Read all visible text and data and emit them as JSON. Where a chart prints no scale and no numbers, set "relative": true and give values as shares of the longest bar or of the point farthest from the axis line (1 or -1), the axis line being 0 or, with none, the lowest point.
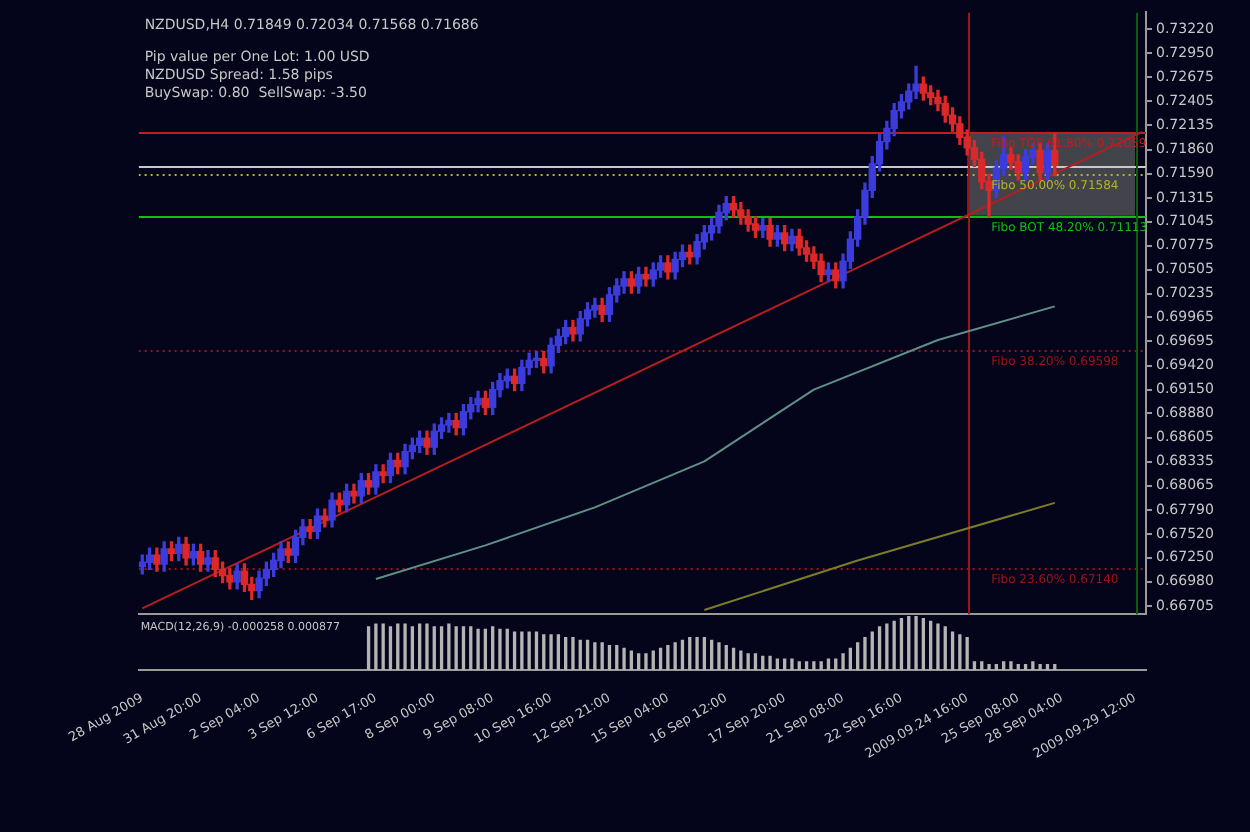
{
  "chart_data": [
    {
      "type": "candlestick",
      "title": "NZDUSD,H4 0.71849 0.72034 0.71568 0.71686",
      "annotations": [
        "Pip value per One Lot: 1.00 USD",
        "NZDUSD Spread: 1.58 pips",
        "BuySwap: 0.80  SellSwap: -3.50"
      ],
      "categories": [
        "28 Aug 2009",
        null,
        null,
        null,
        null,
        null,
        null,
        null,
        "31 Aug 20:00",
        null,
        null,
        null,
        null,
        null,
        null,
        null,
        "2 Sep 04:00",
        null,
        null,
        null,
        null,
        null,
        null,
        null,
        "3 Sep 12:00",
        null,
        null,
        null,
        null,
        null,
        null,
        null,
        "6 Sep 17:00",
        null,
        null,
        null,
        null,
        null,
        null,
        null,
        "8 Sep 00:00",
        null,
        null,
        null,
        null,
        null,
        null,
        null,
        "9 Sep 08:00",
        null,
        null,
        null,
        null,
        null,
        null,
        null,
        "10 Sep 16:00",
        null,
        null,
        null,
        null,
        null,
        null,
        null,
        "12 Sep 21:00",
        null,
        null,
        null,
        null,
        null,
        null,
        null,
        "15 Sep 04:00",
        null,
        null,
        null,
        null,
        null,
        null,
        null,
        "16 Sep 12:00",
        null,
        null,
        null,
        null,
        null,
        null,
        null,
        "17 Sep 20:00",
        null,
        null,
        null,
        null,
        null,
        null,
        null,
        "21 Sep 08:00",
        null,
        null,
        null,
        null,
        null,
        null,
        null,
        "22 Sep 16:00",
        null,
        null,
        null,
        null,
        null,
        null,
        null,
        null,
        "2009.09.24 16:00",
        null,
        null,
        null,
        null,
        null,
        null,
        "25 Sep 08:00",
        null,
        null,
        null,
        null,
        null,
        "28 Sep 04:00",
        null,
        null,
        null,
        null,
        null,
        null,
        null,
        null,
        null,
        "2009.09.29 12:00",
        null
      ],
      "ohlc": [
        [
          0.6715,
          0.6728,
          0.6707,
          0.672
        ],
        [
          0.672,
          0.6736,
          0.6712,
          0.6728
        ],
        [
          0.6728,
          0.6736,
          0.671,
          0.6718
        ],
        [
          0.6718,
          0.6743,
          0.671,
          0.6735
        ],
        [
          0.6735,
          0.6743,
          0.6722,
          0.673
        ],
        [
          0.673,
          0.6748,
          0.6722,
          0.674
        ],
        [
          0.674,
          0.6748,
          0.6717,
          0.6725
        ],
        [
          0.6725,
          0.674,
          0.6717,
          0.6732
        ],
        [
          0.6732,
          0.674,
          0.671,
          0.6718
        ],
        [
          0.6718,
          0.6733,
          0.671,
          0.6725
        ],
        [
          0.6725,
          0.6733,
          0.6704,
          0.6712
        ],
        [
          0.6712,
          0.672,
          0.6697,
          0.6705
        ],
        [
          0.6705,
          0.6713,
          0.669,
          0.6698
        ],
        [
          0.6698,
          0.6718,
          0.669,
          0.671
        ],
        [
          0.671,
          0.6718,
          0.6687,
          0.6695
        ],
        [
          0.6695,
          0.6703,
          0.6678,
          0.6688
        ],
        [
          0.6688,
          0.671,
          0.668,
          0.6702
        ],
        [
          0.6702,
          0.672,
          0.6694,
          0.6712
        ],
        [
          0.6712,
          0.673,
          0.6704,
          0.6722
        ],
        [
          0.6722,
          0.6743,
          0.6714,
          0.6735
        ],
        [
          0.6735,
          0.6743,
          0.672,
          0.6728
        ],
        [
          0.6728,
          0.6756,
          0.672,
          0.6748
        ],
        [
          0.6748,
          0.6768,
          0.674,
          0.676
        ],
        [
          0.676,
          0.6768,
          0.6747,
          0.6755
        ],
        [
          0.6755,
          0.678,
          0.6747,
          0.6772
        ],
        [
          0.6772,
          0.678,
          0.676,
          0.6768
        ],
        [
          0.6768,
          0.6798,
          0.676,
          0.679
        ],
        [
          0.679,
          0.6798,
          0.6777,
          0.6785
        ],
        [
          0.6785,
          0.6808,
          0.6777,
          0.68
        ],
        [
          0.68,
          0.6808,
          0.6787,
          0.6795
        ],
        [
          0.6795,
          0.682,
          0.6787,
          0.6812
        ],
        [
          0.6812,
          0.682,
          0.6797,
          0.6805
        ],
        [
          0.6805,
          0.683,
          0.6797,
          0.6822
        ],
        [
          0.6822,
          0.683,
          0.681,
          0.6818
        ],
        [
          0.6818,
          0.6843,
          0.681,
          0.6835
        ],
        [
          0.6835,
          0.6843,
          0.682,
          0.6828
        ],
        [
          0.6828,
          0.6853,
          0.682,
          0.6845
        ],
        [
          0.6845,
          0.686,
          0.6837,
          0.6852
        ],
        [
          0.6852,
          0.6868,
          0.6844,
          0.686
        ],
        [
          0.686,
          0.6868,
          0.6842,
          0.685
        ],
        [
          0.685,
          0.6876,
          0.6842,
          0.6868
        ],
        [
          0.6868,
          0.6883,
          0.686,
          0.6875
        ],
        [
          0.6875,
          0.6888,
          0.6867,
          0.688
        ],
        [
          0.688,
          0.6888,
          0.6864,
          0.6872
        ],
        [
          0.6872,
          0.6898,
          0.6864,
          0.689
        ],
        [
          0.689,
          0.6906,
          0.6882,
          0.6898
        ],
        [
          0.6898,
          0.6913,
          0.689,
          0.6905
        ],
        [
          0.6905,
          0.6913,
          0.6887,
          0.6895
        ],
        [
          0.6895,
          0.6923,
          0.6887,
          0.6915
        ],
        [
          0.6915,
          0.6933,
          0.6907,
          0.6925
        ],
        [
          0.6925,
          0.6938,
          0.6917,
          0.693
        ],
        [
          0.693,
          0.6938,
          0.6914,
          0.6922
        ],
        [
          0.6922,
          0.6948,
          0.6914,
          0.694
        ],
        [
          0.694,
          0.6956,
          0.6932,
          0.6948
        ],
        [
          0.6948,
          0.6958,
          0.694,
          0.695
        ],
        [
          0.695,
          0.6958,
          0.6934,
          0.6942
        ],
        [
          0.6942,
          0.6973,
          0.6934,
          0.6965
        ],
        [
          0.6965,
          0.6983,
          0.6957,
          0.6975
        ],
        [
          0.6975,
          0.6993,
          0.6967,
          0.6985
        ],
        [
          0.6985,
          0.6993,
          0.697,
          0.6978
        ],
        [
          0.6978,
          0.7003,
          0.697,
          0.6995
        ],
        [
          0.6995,
          0.7013,
          0.6987,
          0.7005
        ],
        [
          0.7005,
          0.7018,
          0.6997,
          0.701
        ],
        [
          0.701,
          0.7018,
          0.6992,
          0.7
        ],
        [
          0.7,
          0.703,
          0.6992,
          0.7022
        ],
        [
          0.7022,
          0.704,
          0.7014,
          0.7032
        ],
        [
          0.7032,
          0.7048,
          0.7024,
          0.704
        ],
        [
          0.704,
          0.7048,
          0.7024,
          0.7032
        ],
        [
          0.7032,
          0.7053,
          0.7024,
          0.7045
        ],
        [
          0.7045,
          0.7053,
          0.7032,
          0.704
        ],
        [
          0.704,
          0.7058,
          0.7032,
          0.705
        ],
        [
          0.705,
          0.7066,
          0.7042,
          0.7058
        ],
        [
          0.7058,
          0.7066,
          0.704,
          0.7048
        ],
        [
          0.7048,
          0.707,
          0.704,
          0.7062
        ],
        [
          0.7062,
          0.7078,
          0.7054,
          0.707
        ],
        [
          0.707,
          0.7078,
          0.7057,
          0.7065
        ],
        [
          0.7065,
          0.709,
          0.7057,
          0.7082
        ],
        [
          0.7082,
          0.71,
          0.7074,
          0.7092
        ],
        [
          0.7092,
          0.7108,
          0.7084,
          0.71
        ],
        [
          0.71,
          0.7123,
          0.7092,
          0.7115
        ],
        [
          0.7115,
          0.7133,
          0.7107,
          0.7125
        ],
        [
          0.7125,
          0.7133,
          0.711,
          0.7118
        ],
        [
          0.7118,
          0.7126,
          0.7102,
          0.711
        ],
        [
          0.711,
          0.7118,
          0.7094,
          0.7102
        ],
        [
          0.7102,
          0.711,
          0.7087,
          0.7095
        ],
        [
          0.7095,
          0.7108,
          0.7087,
          0.71
        ],
        [
          0.71,
          0.7108,
          0.7077,
          0.7085
        ],
        [
          0.7085,
          0.71,
          0.7077,
          0.7092
        ],
        [
          0.7092,
          0.71,
          0.7072,
          0.708
        ],
        [
          0.708,
          0.7096,
          0.7072,
          0.7088
        ],
        [
          0.7088,
          0.7096,
          0.7067,
          0.7075
        ],
        [
          0.7075,
          0.7083,
          0.706,
          0.7068
        ],
        [
          0.7068,
          0.7076,
          0.7052,
          0.706
        ],
        [
          0.706,
          0.7068,
          0.7037,
          0.7045
        ],
        [
          0.7045,
          0.7058,
          0.7037,
          0.705
        ],
        [
          0.705,
          0.7058,
          0.703,
          0.7038
        ],
        [
          0.7038,
          0.7068,
          0.703,
          0.706
        ],
        [
          0.706,
          0.7093,
          0.7052,
          0.7085
        ],
        [
          0.7085,
          0.7118,
          0.7077,
          0.711
        ],
        [
          0.711,
          0.7148,
          0.7102,
          0.714
        ],
        [
          0.714,
          0.7178,
          0.7132,
          0.717
        ],
        [
          0.717,
          0.7203,
          0.7162,
          0.7195
        ],
        [
          0.7195,
          0.7218,
          0.7187,
          0.721
        ],
        [
          0.721,
          0.7238,
          0.7202,
          0.723
        ],
        [
          0.723,
          0.7248,
          0.7222,
          0.724
        ],
        [
          0.724,
          0.726,
          0.7232,
          0.7252
        ],
        [
          0.7252,
          0.728,
          0.7244,
          0.726
        ],
        [
          0.726,
          0.7268,
          0.7242,
          0.725
        ],
        [
          0.725,
          0.7258,
          0.7237,
          0.7245
        ],
        [
          0.7245,
          0.7253,
          0.723,
          0.7238
        ],
        [
          0.7238,
          0.7246,
          0.7217,
          0.7225
        ],
        [
          0.7225,
          0.7233,
          0.7207,
          0.7215
        ],
        [
          0.7215,
          0.7223,
          0.7192,
          0.72
        ],
        [
          0.72,
          0.7208,
          0.718,
          0.7188
        ],
        [
          0.7188,
          0.7196,
          0.7167,
          0.7175
        ],
        [
          0.7175,
          0.7183,
          0.7142,
          0.715
        ],
        [
          0.715,
          0.7158,
          0.7111,
          0.714
        ],
        [
          0.714,
          0.7173,
          0.7132,
          0.7165
        ],
        [
          0.7165,
          0.72,
          0.7157,
          0.718
        ],
        [
          0.718,
          0.7188,
          0.7164,
          0.7172
        ],
        [
          0.7172,
          0.718,
          0.7152,
          0.716
        ],
        [
          0.716,
          0.7186,
          0.7152,
          0.7178
        ],
        [
          0.7178,
          0.7193,
          0.717,
          0.7185
        ],
        [
          0.7185,
          0.7193,
          0.7152,
          0.716
        ],
        [
          0.716,
          0.7193,
          0.7152,
          0.71849
        ],
        [
          0.71849,
          0.72034,
          0.71568,
          0.71686
        ],
        null,
        null,
        null,
        null,
        null,
        null,
        null,
        null,
        null,
        null,
        null,
        null
      ],
      "colors": [
        "#3c3cdc",
        "#3c3cdc",
        "#dc2828",
        "#3c3cdc",
        "#dc2828",
        "#3c3cdc",
        "#dc2828",
        "#3c3cdc",
        "#dc2828",
        "#3c3cdc",
        "#dc2828",
        "#dc2828",
        "#dc2828",
        "#3c3cdc",
        "#dc2828",
        "#dc2828",
        "#3c3cdc",
        "#3c3cdc",
        "#3c3cdc",
        "#3c3cdc",
        "#dc2828",
        "#3c3cdc",
        "#3c3cdc",
        "#dc2828",
        "#3c3cdc",
        "#dc2828",
        "#3c3cdc",
        "#dc2828",
        "#3c3cdc",
        "#dc2828",
        "#3c3cdc",
        "#dc2828",
        "#3c3cdc",
        "#dc2828",
        "#3c3cdc",
        "#dc2828",
        "#3c3cdc",
        "#3c3cdc",
        "#3c3cdc",
        "#dc2828",
        "#3c3cdc",
        "#3c3cdc",
        "#3c3cdc",
        "#dc2828",
        "#3c3cdc",
        "#3c3cdc",
        "#3c3cdc",
        "#dc2828",
        "#3c3cdc",
        "#3c3cdc",
        "#3c3cdc",
        "#dc2828",
        "#3c3cdc",
        "#3c3cdc",
        "#3c3cdc",
        "#dc2828",
        "#3c3cdc",
        "#3c3cdc",
        "#3c3cdc",
        "#dc2828",
        "#3c3cdc",
        "#3c3cdc",
        "#3c3cdc",
        "#dc2828",
        "#3c3cdc",
        "#3c3cdc",
        "#3c3cdc",
        "#dc2828",
        "#3c3cdc",
        "#dc2828",
        "#3c3cdc",
        "#3c3cdc",
        "#dc2828",
        "#3c3cdc",
        "#3c3cdc",
        "#dc2828",
        "#3c3cdc",
        "#3c3cdc",
        "#3c3cdc",
        "#3c3cdc",
        "#3c3cdc",
        "#dc2828",
        "#dc2828",
        "#dc2828",
        "#dc2828",
        "#3c3cdc",
        "#dc2828",
        "#3c3cdc",
        "#dc2828",
        "#3c3cdc",
        "#dc2828",
        "#dc2828",
        "#dc2828",
        "#dc2828",
        "#3c3cdc",
        "#dc2828",
        "#3c3cdc",
        "#3c3cdc",
        "#3c3cdc",
        "#3c3cdc",
        "#3c3cdc",
        "#3c3cdc",
        "#3c3cdc",
        "#3c3cdc",
        "#3c3cdc",
        "#3c3cdc",
        "#3c3cdc",
        "#dc2828",
        "#dc2828",
        "#dc2828",
        "#dc2828",
        "#dc2828",
        "#dc2828",
        "#dc2828",
        "#dc2828",
        "#dc2828",
        "#dc2828",
        "#3c3cdc",
        "#3c3cdc",
        "#dc2828",
        "#dc2828",
        "#3c3cdc",
        "#3c3cdc",
        "#dc2828",
        "#3c3cdc",
        "#dc2828",
        null,
        null,
        null,
        null,
        null,
        null,
        null,
        null,
        null,
        null,
        null,
        null
      ],
      "series": [
        {
          "type": "line",
          "color": "#b41e1e",
          "values": [
            0.6668,
            null,
            null,
            null,
            null,
            null,
            null,
            null,
            null,
            null,
            null,
            null,
            null,
            null,
            null,
            null,
            null,
            null,
            null,
            null,
            null,
            null,
            null,
            null,
            null,
            null,
            null,
            null,
            null,
            null,
            null,
            null,
            null,
            null,
            null,
            null,
            null,
            null,
            null,
            null,
            null,
            null,
            null,
            null,
            null,
            null,
            null,
            null,
            null,
            null,
            null,
            null,
            null,
            null,
            null,
            null,
            null,
            null,
            null,
            null,
            null,
            null,
            null,
            null,
            null,
            null,
            null,
            null,
            null,
            null,
            null,
            null,
            null,
            null,
            null,
            null,
            null,
            null,
            null,
            null,
            null,
            null,
            null,
            null,
            null,
            null,
            null,
            null,
            null,
            null,
            null,
            null,
            null,
            null,
            null,
            null,
            null,
            null,
            null,
            null,
            null,
            null,
            null,
            null,
            null,
            null,
            null,
            null,
            null,
            null,
            null,
            null,
            null,
            null,
            null,
            null,
            null,
            null,
            null,
            null,
            null,
            null,
            null,
            null,
            null,
            null,
            null,
            null,
            null,
            null,
            null,
            null,
            null,
            null,
            null,
            null,
            null,
            0.7206
          ]
        },
        {
          "type": "line",
          "color": "#5f8f88",
          "values": [
            null,
            null,
            null,
            null,
            null,
            null,
            null,
            null,
            null,
            null,
            null,
            null,
            null,
            null,
            null,
            null,
            null,
            null,
            null,
            null,
            null,
            null,
            null,
            null,
            null,
            null,
            null,
            null,
            null,
            null,
            null,
            null,
            0.6701,
            null,
            null,
            null,
            null,
            null,
            null,
            null,
            null,
            null,
            null,
            null,
            null,
            null,
            null,
            0.6739,
            null,
            null,
            null,
            null,
            null,
            null,
            null,
            null,
            null,
            null,
            null,
            null,
            null,
            null,
            0.6782,
            null,
            null,
            null,
            null,
            null,
            null,
            null,
            null,
            null,
            null,
            null,
            null,
            null,
            null,
            0.6834,
            null,
            null,
            null,
            null,
            null,
            null,
            null,
            null,
            null,
            null,
            null,
            null,
            null,
            null,
            0.6915,
            null,
            null,
            null,
            null,
            null,
            null,
            null,
            null,
            null,
            null,
            null,
            null,
            null,
            null,
            null,
            null,
            0.6971,
            null,
            null,
            null,
            null,
            null,
            null,
            null,
            null,
            null,
            null,
            null,
            null,
            null,
            null,
            null,
            0.7009,
            null,
            null,
            null,
            null,
            null,
            null,
            null,
            null,
            null,
            null,
            null,
            null
          ]
        },
        {
          "type": "line",
          "color": "#7c7c28",
          "values": [
            null,
            null,
            null,
            null,
            null,
            null,
            null,
            null,
            null,
            null,
            null,
            null,
            null,
            null,
            null,
            null,
            null,
            null,
            null,
            null,
            null,
            null,
            null,
            null,
            null,
            null,
            null,
            null,
            null,
            null,
            null,
            null,
            null,
            null,
            null,
            null,
            null,
            null,
            null,
            null,
            null,
            null,
            null,
            null,
            null,
            null,
            null,
            null,
            null,
            null,
            null,
            null,
            null,
            null,
            null,
            null,
            null,
            null,
            null,
            null,
            null,
            null,
            null,
            null,
            null,
            null,
            null,
            null,
            null,
            null,
            null,
            null,
            null,
            null,
            null,
            null,
            null,
            0.6666,
            null,
            null,
            null,
            null,
            null,
            null,
            null,
            null,
            null,
            null,
            null,
            null,
            null,
            null,
            null,
            null,
            null,
            null,
            null,
            null,
            0.6722,
            null,
            null,
            null,
            null,
            null,
            null,
            null,
            null,
            null,
            null,
            null,
            null,
            null,
            null,
            null,
            null,
            null,
            null,
            null,
            null,
            null,
            null,
            null,
            null,
            null,
            null,
            0.6787,
            null,
            null,
            null,
            null,
            null,
            null,
            null,
            null,
            null,
            null,
            null,
            null
          ]
        }
      ],
      "ylim": [
        0.6661,
        0.7341
      ],
      "yticks": [
        {
          "value": 0.7322,
          "label": "0.73220"
        },
        {
          "value": 0.7295,
          "label": "0.72950"
        },
        0.72675,
        0.72405,
        0.72135,
        {
          "value": 0.7186,
          "label": "0.71860"
        },
        {
          "value": 0.7159,
          "label": "0.71590"
        },
        0.71315,
        0.71045,
        0.70775,
        0.70505,
        0.70235,
        0.69965,
        0.69695,
        {
          "value": 0.6942,
          "label": "0.69420"
        },
        {
          "value": 0.6915,
          "label": "0.69150"
        },
        {
          "value": 0.6888,
          "label": "0.68880"
        },
        0.68605,
        0.68335,
        0.68065,
        {
          "value": 0.6779,
          "label": "0.67790"
        },
        {
          "value": 0.6752,
          "label": "0.67520"
        },
        {
          "value": 0.6725,
          "label": "0.67250"
        },
        {
          "value": 0.6698,
          "label": "0.66980"
        },
        0.66705
      ],
      "ref_lines": [
        {
          "axis": "y",
          "value": 0.72059,
          "label": "Fibo TOP 61.80% 0.72059",
          "color": "#c01e1e"
        },
        {
          "axis": "y",
          "value": 0.71686,
          "color": "#c8c8c8"
        },
        {
          "axis": "y",
          "value": 0.71584,
          "label": "Fibo 50.00% 0.71584",
          "color": "#b4b428",
          "line_style": "dotted"
        },
        {
          "axis": "y",
          "value": 0.71113,
          "label": "Fibo BOT 48.20% 0.71113",
          "color": "#10c010"
        },
        {
          "axis": "y",
          "value": 0.69598,
          "label": "Fibo 38.20% 0.69598",
          "color": "#a01414",
          "line_style": "dotted"
        },
        {
          "axis": "y",
          "value": 0.6714,
          "label": "Fibo 23.60% 0.67140",
          "color": "#a01414",
          "line_style": "dotted"
        },
        {
          "axis": "x",
          "value": "2009.09.24 16:00",
          "color": "#a01414"
        },
        {
          "axis": "x",
          "value": "2009.09.29 12:00",
          "color": "#0c5a0c"
        }
      ],
      "bands": [
        {
          "axis": "y",
          "from": 0.71113,
          "to": 0.72059,
          "color": "#6e6e6e"
        }
      ],
      "tick_labels": true
    },
    {
      "type": "bar",
      "title": "MACD(12,26,9) -0.000258 0.000877",
      "relative": true,
      "color": "#b4b4b4",
      "categories": [
        null,
        null,
        null,
        null,
        null,
        null,
        null,
        null,
        null,
        null,
        null,
        null,
        null,
        null,
        null,
        null,
        null,
        null,
        null,
        null,
        null,
        null,
        null,
        null,
        null,
        null,
        null,
        null,
        null,
        null,
        null,
        null,
        null,
        null,
        null,
        null,
        null,
        null,
        null,
        null,
        null,
        null,
        null,
        null,
        null,
        null,
        null,
        null,
        null,
        null,
        null,
        null,
        null,
        null,
        null,
        null,
        null,
        null,
        null,
        null,
        null,
        null,
        null,
        null,
        null,
        null,
        null,
        null,
        null,
        null,
        null,
        null,
        null,
        null,
        null,
        null,
        null,
        null,
        null,
        null,
        null,
        null,
        null,
        null,
        null,
        null,
        null,
        null,
        null,
        null,
        null,
        null,
        null,
        null,
        null,
        null,
        null,
        null,
        null,
        null,
        null,
        null,
        null,
        null,
        null,
        null,
        null,
        null,
        null,
        null,
        null,
        null,
        null,
        null,
        null,
        null,
        null,
        null,
        null,
        null,
        null,
        null,
        null,
        null,
        null,
        null,
        null,
        null,
        null,
        null,
        null,
        null,
        null,
        null,
        null,
        null,
        null,
        null
      ],
      "values": [
        null,
        null,
        null,
        null,
        null,
        null,
        null,
        null,
        null,
        null,
        null,
        null,
        null,
        null,
        null,
        null,
        null,
        null,
        null,
        null,
        null,
        null,
        null,
        null,
        null,
        null,
        null,
        null,
        null,
        null,
        null,
        0.8,
        0.85,
        0.85,
        0.8,
        0.85,
        0.85,
        0.8,
        0.85,
        0.85,
        0.8,
        0.8,
        0.85,
        0.8,
        0.8,
        0.8,
        0.75,
        0.75,
        0.8,
        0.75,
        0.75,
        0.7,
        0.7,
        0.7,
        0.7,
        0.65,
        0.65,
        0.65,
        0.6,
        0.6,
        0.55,
        0.55,
        0.5,
        0.5,
        0.45,
        0.45,
        0.4,
        0.35,
        0.3,
        0.3,
        0.35,
        0.4,
        0.45,
        0.5,
        0.55,
        0.6,
        0.6,
        0.6,
        0.55,
        0.5,
        0.45,
        0.4,
        0.35,
        0.3,
        0.3,
        0.25,
        0.25,
        0.2,
        0.2,
        0.2,
        0.15,
        0.15,
        0.15,
        0.15,
        0.2,
        0.2,
        0.3,
        0.4,
        0.5,
        0.6,
        0.7,
        0.8,
        0.85,
        0.9,
        0.95,
        1,
        1,
        0.95,
        0.9,
        0.85,
        0.8,
        0.7,
        0.65,
        0.6,
        0.15,
        0.15,
        0.1,
        0.1,
        0.15,
        0.15,
        0.1,
        0.1,
        0.15,
        0.1,
        0.1,
        0.1,
        null,
        null,
        null,
        null,
        null,
        null,
        null,
        null,
        null,
        null,
        null,
        null
      ],
      "tick_labels": false
    }
  ]
}
